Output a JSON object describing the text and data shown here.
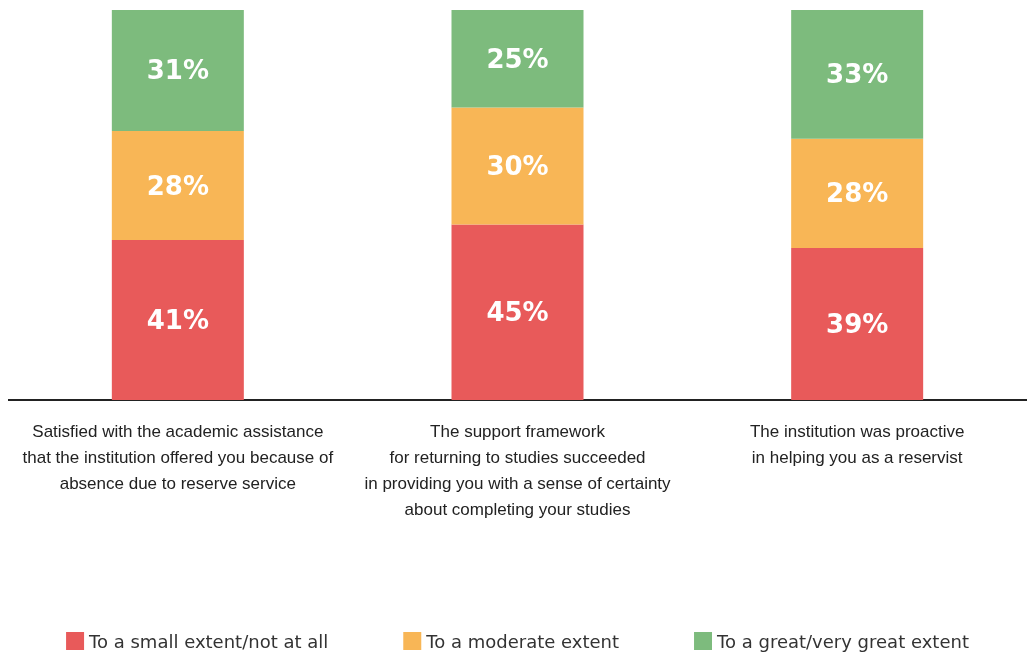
{
  "chart_data": {
    "type": "bar",
    "stacked": true,
    "legend": "bottom",
    "grid": false,
    "categories": [
      "Satisfied with the academic assistance\nthat the institution offered you because of\nabsence due to reserve service",
      "The support framework\nfor returning to studies succeeded\nin providing you with a sense of certainty\nabout completing your studies",
      "The institution was proactive\nin helping you as a reservist"
    ],
    "series": [
      {
        "name": "To a small extent/not at all",
        "color": "#e85a5a",
        "values": [
          41,
          45,
          39
        ],
        "value_labels": [
          "41%",
          "45%",
          "39%"
        ]
      },
      {
        "name": "To a moderate extent",
        "color": "#f8b656",
        "values": [
          28,
          30,
          28
        ],
        "value_labels": [
          "28%",
          "30%",
          "28%"
        ]
      },
      {
        "name": "To a great/very great extent",
        "color": "#7dbb7d",
        "values": [
          31,
          25,
          33
        ],
        "value_labels": [
          "31%",
          "25%",
          "33%"
        ]
      }
    ]
  }
}
